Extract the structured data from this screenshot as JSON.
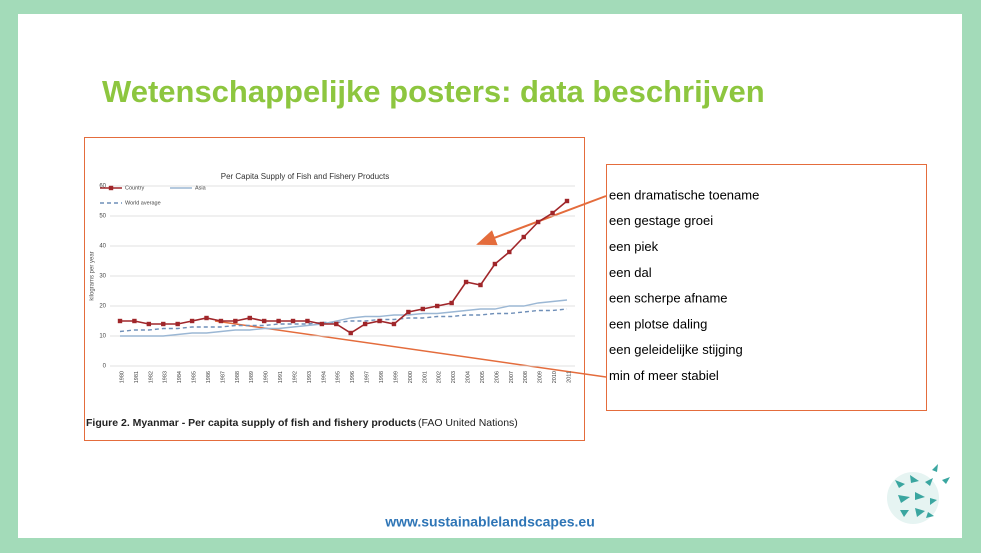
{
  "slide": {
    "title": "Wetenschappelijke posters: data beschrijven",
    "list": [
      "een dramatische toename",
      "een gestage groei",
      "een piek",
      "een dal",
      "een scherpe afname",
      "een plotse daling",
      "een geleidelijke stijging",
      "min of meer stabiel"
    ],
    "footer": "www.sustainablelandscapes.eu"
  },
  "caption": {
    "bold": "Figure 2. Myanmar - Per capita supply of fish and fishery products",
    "text": "(FAO United Nations)"
  },
  "chart_data": {
    "type": "line",
    "title": "Per Capita Supply of Fish and Fishery Products",
    "y_label": "kilograms per year",
    "x": [
      "1980",
      "1981",
      "1982",
      "1983",
      "1984",
      "1985",
      "1986",
      "1987",
      "1988",
      "1989",
      "1990",
      "1991",
      "1992",
      "1993",
      "1994",
      "1995",
      "1996",
      "1997",
      "1998",
      "1999",
      "2000",
      "2001",
      "2002",
      "2003",
      "2004",
      "2005",
      "2006",
      "2007",
      "2008",
      "2009",
      "2010",
      "2011"
    ],
    "series": [
      {
        "name": "Country",
        "color": "#a0262a",
        "dashed": false,
        "markers": true,
        "values": [
          15,
          15,
          14,
          14,
          14,
          15,
          16,
          15,
          15,
          16,
          15,
          15,
          15,
          15,
          14,
          14,
          11,
          14,
          15,
          14,
          18,
          19,
          20,
          21,
          28,
          27,
          34,
          38,
          43,
          48,
          51,
          55
        ]
      },
      {
        "name": "Asia",
        "color": "#9bb7d4",
        "dashed": false,
        "markers": false,
        "values": [
          10,
          10,
          10,
          10,
          10.5,
          11,
          11,
          11.5,
          12,
          12,
          12.5,
          12.5,
          13,
          13.5,
          14,
          15,
          16,
          16.5,
          16.5,
          17,
          17,
          17.5,
          17.5,
          18,
          18.5,
          19,
          19,
          20,
          20,
          21,
          21.5,
          22
        ]
      },
      {
        "name": "World average",
        "color": "#6f8fb8",
        "dashed": true,
        "markers": false,
        "values": [
          11.5,
          12,
          12,
          12.5,
          12.5,
          13,
          13,
          13,
          13.5,
          13.5,
          13.5,
          14,
          14,
          14,
          14.5,
          14.5,
          15,
          15,
          15.5,
          15.5,
          16,
          16,
          16.5,
          16.5,
          17,
          17,
          17.5,
          17.5,
          18,
          18.5,
          18.5,
          19
        ]
      }
    ],
    "ylim": [
      0,
      60
    ],
    "yticks": [
      0,
      10,
      20,
      30,
      40,
      50,
      60
    ],
    "grid": true
  }
}
